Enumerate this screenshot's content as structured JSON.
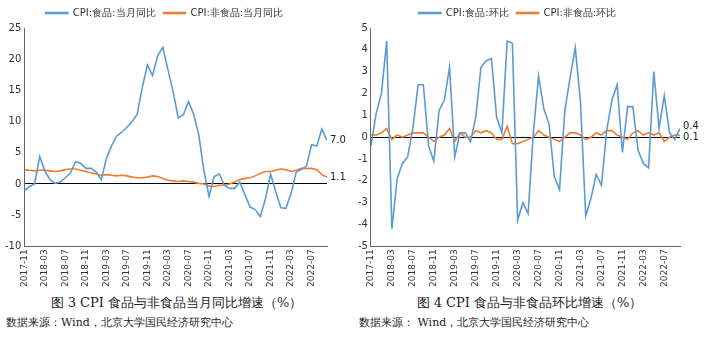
{
  "chart_data": [
    {
      "type": "line",
      "title": "图 3 CPI 食品与非食品当月同比增速（%）",
      "source": "数据来源：Wind，北京大学国民经济研究中心",
      "categories": [
        "2017-11",
        null,
        null,
        null,
        "2018-03",
        null,
        null,
        null,
        "2018-07",
        null,
        null,
        null,
        "2018-11",
        null,
        null,
        null,
        "2019-03",
        null,
        null,
        null,
        "2019-07",
        null,
        null,
        null,
        "2019-11",
        null,
        null,
        null,
        "2020-03",
        null,
        null,
        null,
        "2020-07",
        null,
        null,
        null,
        "2020-11",
        null,
        null,
        null,
        "2021-03",
        null,
        null,
        null,
        "2021-07",
        null,
        null,
        null,
        "2021-11",
        null,
        null,
        null,
        "2022-03",
        null,
        null,
        null,
        "2022-07",
        null,
        null,
        null
      ],
      "series": [
        {
          "name": "CPI:食品:当月同比",
          "color": "#5b9bd5",
          "values": [
            -1.1,
            -0.4,
            0.0,
            4.4,
            2.1,
            0.7,
            0.1,
            0.3,
            1.0,
            1.8,
            3.6,
            3.3,
            2.5,
            2.5,
            1.9,
            0.7,
            4.1,
            6.1,
            7.7,
            8.3,
            9.1,
            10.0,
            11.2,
            15.5,
            19.1,
            17.4,
            20.6,
            21.9,
            18.3,
            14.8,
            10.6,
            11.1,
            13.2,
            11.2,
            7.9,
            2.2,
            -2.0,
            1.2,
            1.6,
            -0.2,
            -0.7,
            -0.7,
            0.3,
            -1.7,
            -3.7,
            -4.1,
            -5.2,
            -2.4,
            1.6,
            -1.2,
            -3.8,
            -3.9,
            -1.5,
            1.9,
            2.3,
            2.9,
            6.3,
            6.1,
            8.8,
            7.0
          ]
        },
        {
          "name": "CPI:非食品:当月同比",
          "color": "#ed7d31",
          "values": [
            2.3,
            2.2,
            2.1,
            2.2,
            2.2,
            2.1,
            2.0,
            2.1,
            2.3,
            2.4,
            2.4,
            2.2,
            2.0,
            1.8,
            1.6,
            1.4,
            1.5,
            1.4,
            1.3,
            1.4,
            1.3,
            1.1,
            1.0,
            1.0,
            1.1,
            1.3,
            1.2,
            0.9,
            0.6,
            0.5,
            0.4,
            0.5,
            0.4,
            0.3,
            0.1,
            0.0,
            -0.3,
            -0.4,
            -0.2,
            -0.2,
            0.0,
            0.3,
            0.7,
            0.9,
            1.0,
            1.3,
            1.7,
            2.0,
            2.0,
            2.2,
            2.4,
            2.3,
            2.0,
            2.2,
            2.5,
            2.5,
            2.5,
            2.3,
            1.5,
            1.1
          ]
        }
      ],
      "annotations": [
        {
          "text": "7.0",
          "value": 7.0
        },
        {
          "text": "1.1",
          "value": 1.1
        }
      ],
      "ylim": [
        -10,
        25
      ],
      "yticks": [
        -10,
        -5,
        0,
        5,
        10,
        15,
        20,
        25
      ],
      "grid": false,
      "legend": "top"
    },
    {
      "type": "line",
      "title": "图 4 CPI 食品与非食品环比增速（%）",
      "source": "数据来源： Wind，北京大学国民经济研究中心",
      "categories": [
        "2017-11",
        null,
        null,
        null,
        "2018-03",
        null,
        null,
        null,
        "2018-07",
        null,
        null,
        null,
        "2018-11",
        null,
        null,
        null,
        "2019-03",
        null,
        null,
        null,
        "2019-07",
        null,
        null,
        null,
        "2019-11",
        null,
        null,
        null,
        "2020-03",
        null,
        null,
        null,
        "2020-07",
        null,
        null,
        null,
        "2020-11",
        null,
        null,
        null,
        "2021-03",
        null,
        null,
        null,
        "2021-07",
        null,
        null,
        null,
        "2021-11",
        null,
        null,
        null,
        "2022-03",
        null,
        null,
        null,
        "2022-07",
        null,
        null,
        null
      ],
      "series": [
        {
          "name": "CPI:食品:环比",
          "color": "#5b9bd5",
          "values": [
            -0.4,
            1.1,
            2.0,
            4.4,
            -4.2,
            -1.9,
            -1.2,
            -0.9,
            0.4,
            2.4,
            2.4,
            -0.4,
            -1.1,
            1.2,
            1.7,
            3.2,
            -0.9,
            0.2,
            0.2,
            -0.2,
            0.9,
            3.2,
            3.5,
            3.6,
            0.9,
            0.2,
            4.4,
            4.3,
            -3.8,
            -3.0,
            -3.5,
            0.2,
            2.8,
            1.3,
            0.6,
            -1.8,
            -2.4,
            1.2,
            2.7,
            4.1,
            1.6,
            -3.6,
            -2.8,
            -1.7,
            -2.2,
            0.3,
            1.7,
            2.4,
            -0.7,
            1.4,
            1.4,
            -0.6,
            -1.2,
            -1.4,
            3.0,
            0.4,
            1.9,
            0.2,
            -0.1,
            0.4
          ]
        },
        {
          "name": "CPI:非食品:环比",
          "color": "#ed7d31",
          "values": [
            0.1,
            0.1,
            0.2,
            0.4,
            -0.1,
            0.1,
            0.0,
            0.1,
            0.2,
            0.2,
            0.2,
            0.0,
            -0.2,
            0.0,
            0.1,
            0.4,
            -0.2,
            0.2,
            0.0,
            0.0,
            0.3,
            0.2,
            0.3,
            0.2,
            -0.1,
            -0.1,
            0.5,
            -0.3,
            -0.3,
            -0.2,
            -0.1,
            0.0,
            0.3,
            0.1,
            0.0,
            -0.1,
            -0.2,
            0.0,
            0.2,
            0.2,
            0.1,
            -0.1,
            0.0,
            0.2,
            0.1,
            0.3,
            0.3,
            0.1,
            0.0,
            -0.1,
            0.2,
            0.3,
            0.1,
            0.2,
            0.1,
            0.2,
            -0.2,
            0.0,
            0.1,
            0.1
          ]
        }
      ],
      "annotations": [
        {
          "text": "0.4",
          "value": 0.4
        },
        {
          "text": "0.1",
          "value": 0.1
        }
      ],
      "ylim": [
        -5,
        5
      ],
      "yticks": [
        -5,
        -4,
        -3,
        -2,
        -1,
        0,
        1,
        2,
        3,
        4,
        5
      ],
      "grid": false,
      "legend": "top"
    }
  ]
}
